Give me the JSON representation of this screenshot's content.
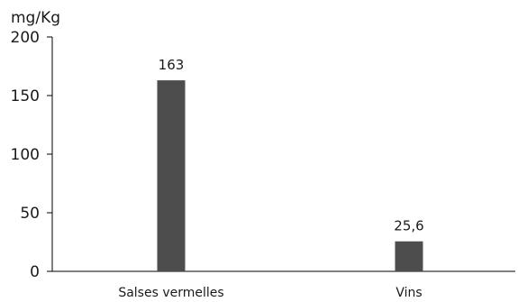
{
  "chart_data": {
    "type": "bar",
    "unit_label": "mg/Kg",
    "categories": [
      "Salses vermelles",
      "Vins"
    ],
    "values": [
      163,
      25.6
    ],
    "data_labels": [
      "163",
      "25,6"
    ],
    "yticks": [
      0,
      50,
      100,
      150,
      200
    ],
    "ylim": [
      0,
      200
    ],
    "bar_color": "#4d4d4d",
    "axis_color": "#000000",
    "grid": false
  }
}
